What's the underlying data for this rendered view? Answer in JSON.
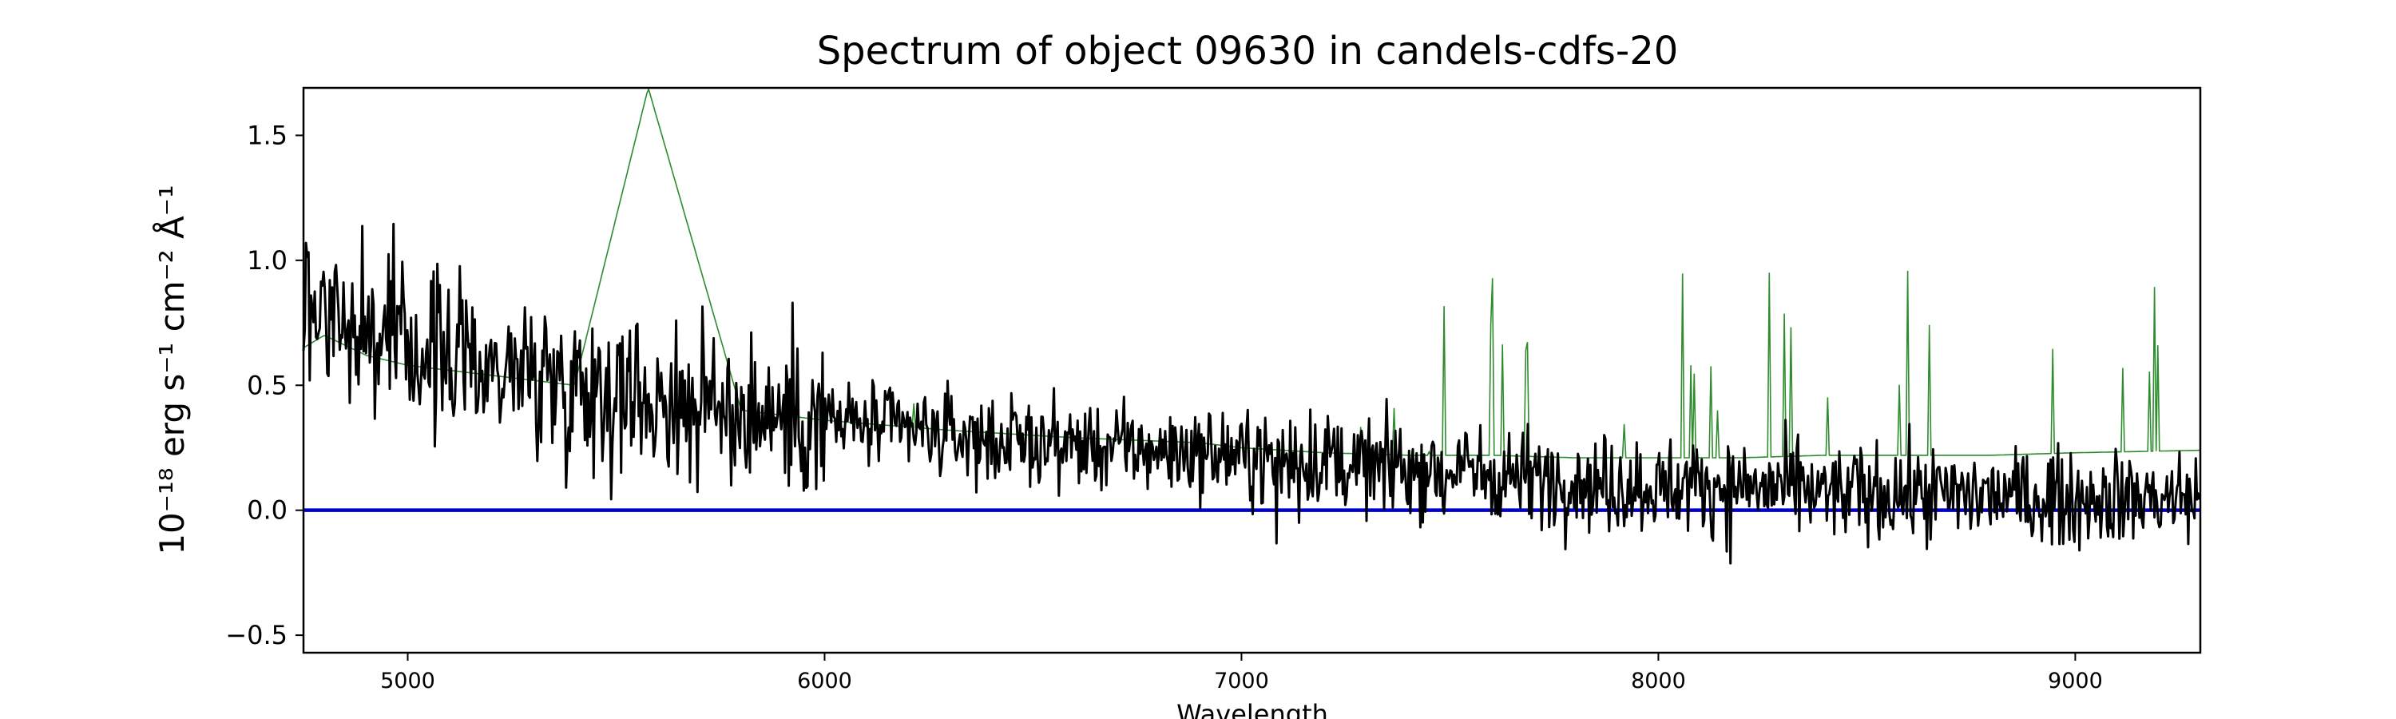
{
  "chart_data": {
    "type": "line",
    "title": "Spectrum of object 09630 in candels-cdfs-20",
    "xlabel": "Wavelength",
    "ylabel": "10⁻¹⁸ erg s⁻¹ cm⁻² Å⁻¹",
    "xlim": [
      4750,
      9300
    ],
    "ylim": [
      -0.57,
      1.69
    ],
    "x_ticks": [
      5000,
      6000,
      7000,
      8000,
      9000
    ],
    "y_ticks": [
      -0.5,
      0.0,
      0.5,
      1.0,
      1.5
    ],
    "x_tick_labels": [
      "5000",
      "6000",
      "7000",
      "8000",
      "9000"
    ],
    "y_tick_labels": [
      "−0.5",
      "0.0",
      "0.5",
      "1.0",
      "1.5"
    ],
    "grid": false,
    "legend": "none",
    "series": [
      {
        "color": "#000000",
        "style": "noisy spectrum",
        "x": [
          4750,
          4800,
          4850,
          4900,
          5000,
          5100,
          5200,
          5300,
          5400,
          5500,
          5600,
          5700,
          5800,
          5900,
          6000,
          6100,
          6200,
          6300,
          6400,
          6500,
          6600,
          6700,
          6800,
          6900,
          7000,
          7100,
          7200,
          7300,
          7400,
          7500,
          7600,
          7700,
          7800,
          7900,
          8000,
          8100,
          8200,
          8300,
          8400,
          8500,
          8600,
          8700,
          8800,
          8900,
          9000,
          9100,
          9200,
          9300
        ],
        "y": [
          0.85,
          0.82,
          0.78,
          0.72,
          0.65,
          0.62,
          0.58,
          0.55,
          0.52,
          0.48,
          0.45,
          0.42,
          0.4,
          0.38,
          0.36,
          0.34,
          0.32,
          0.3,
          0.28,
          0.27,
          0.26,
          0.25,
          0.24,
          0.23,
          0.22,
          0.21,
          0.2,
          0.18,
          0.17,
          0.16,
          0.15,
          0.14,
          0.12,
          0.1,
          0.1,
          0.1,
          0.1,
          0.08,
          0.07,
          0.07,
          0.07,
          0.06,
          0.06,
          0.05,
          0.05,
          0.05,
          0.05,
          0.05
        ]
      },
      {
        "color": "#2e8b2e",
        "style": "thin model / sky",
        "x": [
          4750,
          4800,
          4900,
          5000,
          5200,
          5400,
          5577,
          5800,
          6000,
          6300,
          6600,
          6900,
          7000,
          7200,
          7400,
          7600,
          7800,
          8000,
          8200,
          8400,
          8600,
          8800,
          9000,
          9300
        ],
        "y": [
          0.65,
          0.7,
          0.62,
          0.58,
          0.54,
          0.5,
          1.69,
          0.4,
          0.36,
          0.32,
          0.29,
          0.27,
          0.25,
          0.23,
          0.22,
          0.22,
          0.21,
          0.21,
          0.21,
          0.22,
          0.22,
          0.22,
          0.23,
          0.24
        ]
      },
      {
        "color": "#0000cc",
        "style": "zero line",
        "x": [
          4750,
          9300
        ],
        "y": [
          0.0,
          0.0
        ]
      }
    ]
  }
}
